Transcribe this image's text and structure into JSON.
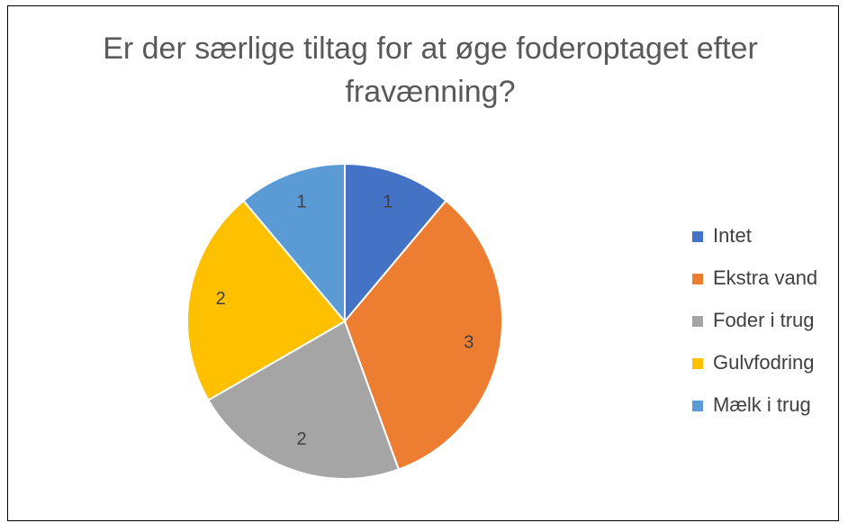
{
  "chart_data": {
    "type": "pie",
    "title": "Er der særlige tiltag for at øge foderoptaget efter fravænning?",
    "categories": [
      "Intet",
      "Ekstra vand",
      "Foder i trug",
      "Gulvfodring",
      "Mælk i trug"
    ],
    "values": [
      1,
      3,
      2,
      2,
      1
    ],
    "colors": [
      "#4472c4",
      "#ed7d31",
      "#a5a5a5",
      "#ffc000",
      "#5b9bd5"
    ],
    "legend": "right"
  }
}
